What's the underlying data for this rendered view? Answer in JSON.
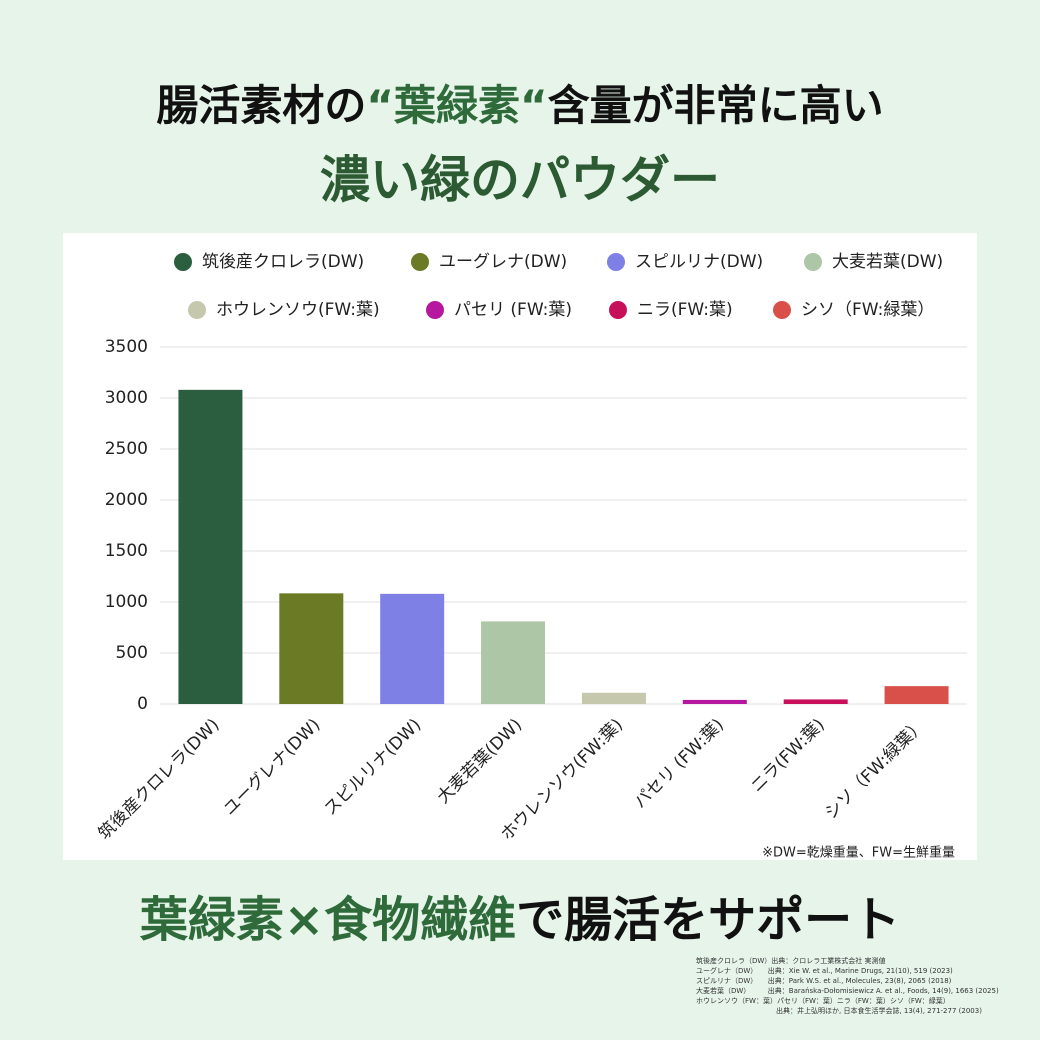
{
  "header": {
    "title_parts": [
      "腸活素材の",
      "“葉緑素“",
      "含量が非常に高い"
    ],
    "subtitle": "濃い緑のパウダー"
  },
  "chart_data": {
    "type": "bar",
    "categories": [
      "筑後産クロレラ(DW)",
      "ユーグレナ(DW)",
      "スピルリナ(DW)",
      "大麦若葉(DW)",
      "ホウレンソウ(FW:葉)",
      "パセリ (FW:葉)",
      "ニラ(FW:葉)",
      "シソ（FW:緑葉）"
    ],
    "values": [
      3080,
      1085,
      1080,
      810,
      110,
      40,
      45,
      175
    ],
    "colors": [
      "#2a5e3e",
      "#6b7a25",
      "#7e80e6",
      "#adc6a6",
      "#c6c8ae",
      "#b5189f",
      "#c8105a",
      "#d9504a"
    ],
    "ylim": [
      0,
      3500
    ],
    "yticks": [
      0,
      500,
      1000,
      1500,
      2000,
      2500,
      3000,
      3500
    ],
    "grid": true,
    "note": "※DW=乾燥重量、FW=生鮮重量"
  },
  "tagline": {
    "highlight": "葉緑素×食物繊維",
    "rest": "で腸活をサポート"
  },
  "sources": [
    "筑後産クロレラ（DW）出典：クロレラ工業株式会社 実測値",
    "ユーグレナ（DW）　　出典：Xie W. et al., Marine Drugs, 21(10), 519 (2023)",
    "スピルリナ（DW）　　出典：Park W.S. et al., Molecules, 23(8), 2065 (2018)",
    "大麦若葉（DW）　　　出典：Barańska-Dołomisiewicz A. et al., Foods, 14(9), 1663 (2025)",
    "ホウレンソウ（FW：葉）パセリ（FW：葉）ニラ（FW：葉）シソ（FW：緑葉）",
    "出典：井上弘明ほか, 日本食生活学会誌, 13(4), 271-277 (2003)"
  ]
}
